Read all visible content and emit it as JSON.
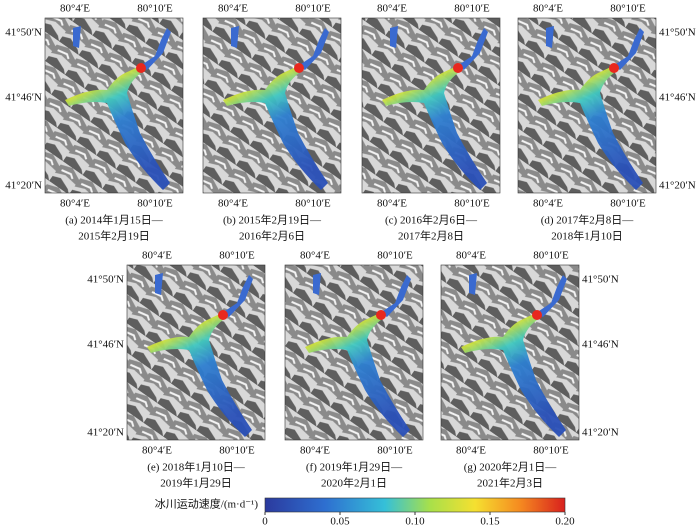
{
  "panels": [
    {
      "caption": [
        "(a) 2014年1月15日—",
        "2015年2月19日"
      ]
    },
    {
      "caption": [
        "(b) 2015年2月19日—",
        "2016年2月6日"
      ]
    },
    {
      "caption": [
        "(c) 2016年2月6日—",
        "2017年2月8日"
      ]
    },
    {
      "caption": [
        "(d) 2017年2月8日—",
        "2018年1月10日"
      ]
    },
    {
      "caption": [
        "(e) 2018年1月10日—",
        "2019年1月29日"
      ]
    },
    {
      "caption": [
        "(f) 2019年1月29日—",
        "2020年2月1日"
      ]
    },
    {
      "caption": [
        "(g) 2020年2月1日—",
        "2021年2月3日"
      ]
    }
  ],
  "axis_labels": {
    "lon": [
      "80°4′E",
      "80°10′E"
    ],
    "lat": [
      "41°50′N",
      "41°46′N",
      "41°20′N"
    ]
  },
  "colorbar": {
    "label": "冰川运动速度/(m·d⁻¹)",
    "range": [
      0,
      0.2
    ],
    "ticks": [
      0,
      {
        "value": 0.05,
        "label": "0.05"
      },
      {
        "value": 0.1,
        "label": "0.10"
      },
      0.15,
      {
        "value": 0.2,
        "label": "0.20"
      }
    ]
  }
}
